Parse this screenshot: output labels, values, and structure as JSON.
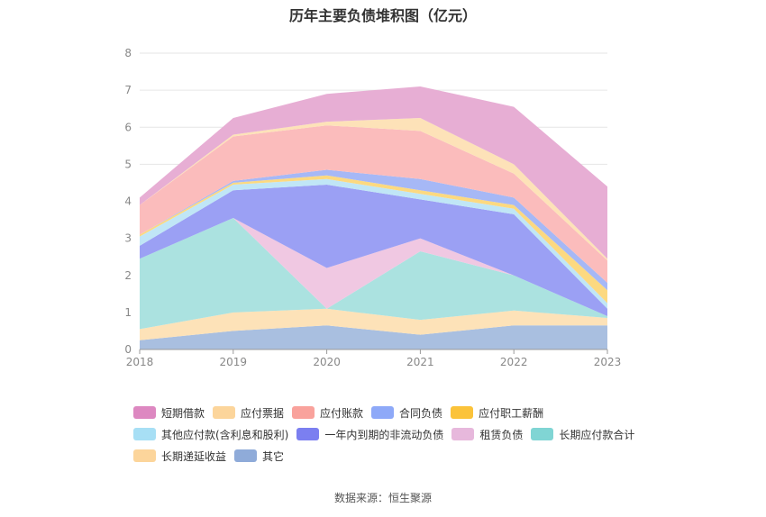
{
  "title": "历年主要负债堆积图（亿元）",
  "source": "数据来源：恒生聚源",
  "chart_data": {
    "type": "area",
    "stacked": true,
    "title": "历年主要负债堆积图（亿元）",
    "x": [
      "2018",
      "2019",
      "2020",
      "2021",
      "2022",
      "2023"
    ],
    "yticks": [
      "0",
      "1",
      "2",
      "3",
      "4",
      "5",
      "6",
      "7",
      "8"
    ],
    "ylim": [
      0,
      8
    ],
    "grid": true,
    "legend_position": "bottom",
    "series": [
      {
        "name": "其它",
        "color": "#a9bfe0",
        "values": [
          0.25,
          0.5,
          0.65,
          0.4,
          0.65,
          0.65
        ]
      },
      {
        "name": "长期递延收益",
        "color": "#fde2b8",
        "values": [
          0.3,
          0.5,
          0.45,
          0.4,
          0.4,
          0.2
        ]
      },
      {
        "name": "长期应付款合计",
        "color": "#abe2e0",
        "values": [
          1.9,
          2.55,
          0.0,
          1.85,
          0.95,
          0.05
        ]
      },
      {
        "name": "租赁负债",
        "color": "#f0c8e2",
        "values": [
          0.0,
          0.0,
          1.1,
          0.35,
          0.0,
          0.0
        ]
      },
      {
        "name": "一年内到期的非流动负债",
        "color": "#9ba0f4",
        "values": [
          0.35,
          0.75,
          2.25,
          1.05,
          1.65,
          0.2
        ]
      },
      {
        "name": "其他应付款(含利息和股利)",
        "color": "#c0e6f6",
        "values": [
          0.25,
          0.15,
          0.15,
          0.15,
          0.15,
          0.15
        ]
      },
      {
        "name": "应付职工薪酬",
        "color": "#fcd980",
        "values": [
          0.05,
          0.05,
          0.1,
          0.1,
          0.1,
          0.35
        ]
      },
      {
        "name": "合同负债",
        "color": "#a6b8f6",
        "values": [
          0.0,
          0.05,
          0.15,
          0.3,
          0.2,
          0.2
        ]
      },
      {
        "name": "应付账款",
        "color": "#fbbcbc",
        "values": [
          0.8,
          1.2,
          1.2,
          1.3,
          0.65,
          0.6
        ]
      },
      {
        "name": "应付票据",
        "color": "#fde2b8",
        "values": [
          0.0,
          0.05,
          0.1,
          0.35,
          0.25,
          0.05
        ]
      },
      {
        "name": "短期借款",
        "color": "#e7aed4",
        "values": [
          0.2,
          0.45,
          0.75,
          0.85,
          1.55,
          1.95
        ]
      }
    ]
  },
  "legend": {
    "rows": [
      [
        {
          "label": "短期借款",
          "color": "#dd88c1"
        },
        {
          "label": "应付票据",
          "color": "#fcd59b"
        },
        {
          "label": "应付账款",
          "color": "#f9a29c"
        },
        {
          "label": "合同负债",
          "color": "#8ea9f8"
        },
        {
          "label": "应付职工薪酬",
          "color": "#fbc33a"
        }
      ],
      [
        {
          "label": "其他应付款(含利息和股利)",
          "color": "#a7dff5"
        },
        {
          "label": "一年内到期的非流动负债",
          "color": "#7b7ff0"
        },
        {
          "label": "租赁负债",
          "color": "#e7b8dc"
        },
        {
          "label": "长期应付款合计",
          "color": "#80d5d4"
        }
      ],
      [
        {
          "label": "长期递延收益",
          "color": "#fcd59b"
        },
        {
          "label": "其它",
          "color": "#8fabd9"
        }
      ]
    ]
  }
}
